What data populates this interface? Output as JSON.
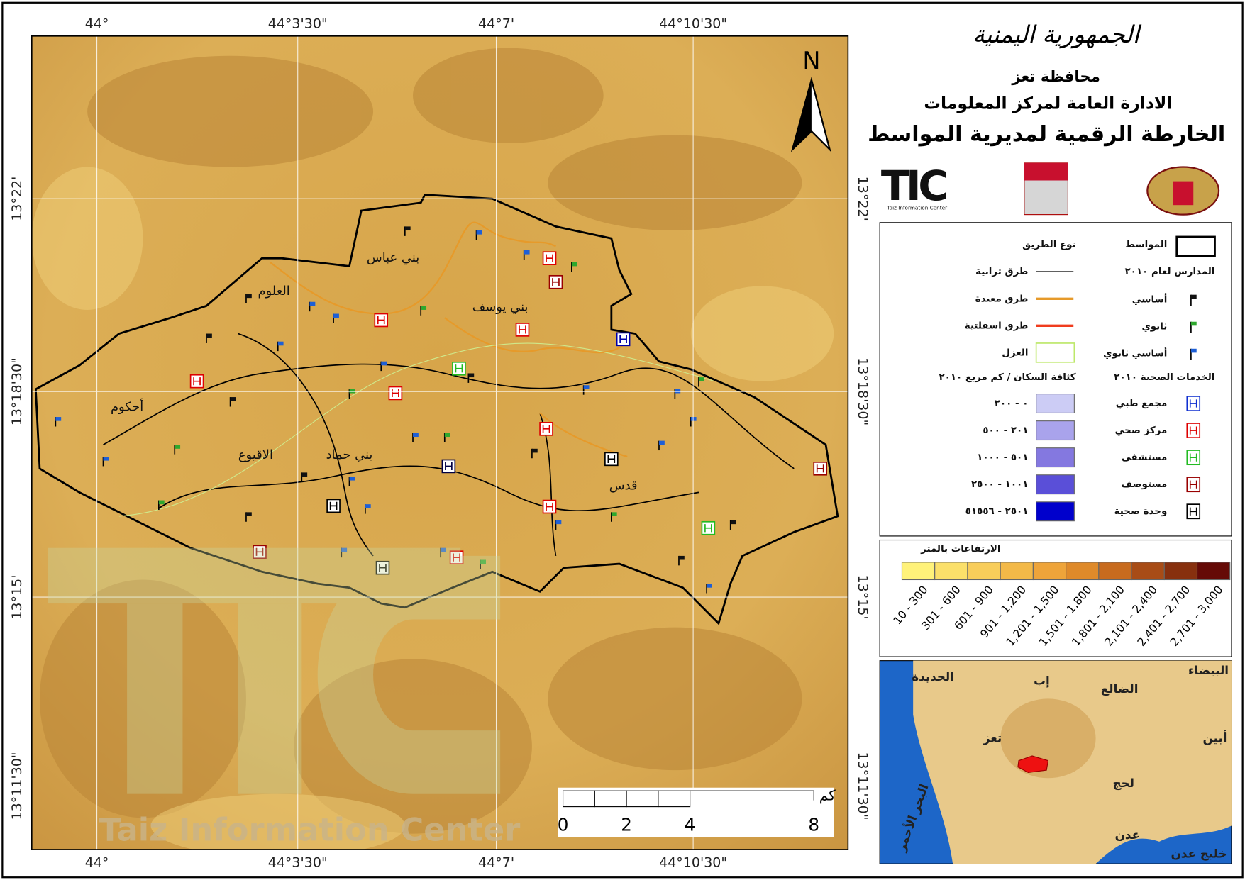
{
  "header": {
    "logo_text": "الجمهورية اليمنية",
    "governorate": "محافظة تعز",
    "department": "الادارة العامة لمركز المعلومات",
    "title": "الخارطة الرقمية لمديرية المواسط"
  },
  "logos": {
    "tic": "TIC",
    "tic_sub": "Taiz Information Center"
  },
  "north": "N",
  "coordinates": {
    "lon": [
      "44°",
      "44°3'30\"",
      "44°7'",
      "44°10'30\""
    ],
    "lat": [
      "13°22'",
      "13°18'30\"",
      "13°15'",
      "13°11'30\""
    ]
  },
  "map_labels": [
    "بني عباس",
    "العلوم",
    "بني يوسف",
    "أحكوم",
    "الاقيوع",
    "بني حماد",
    "قدس"
  ],
  "legend": {
    "district": "المواسط",
    "roads_title": "نوع الطريق",
    "roads": [
      "طرق ترابية",
      "طرق معبدة",
      "طرق اسفلتية"
    ],
    "isolation": "العزل",
    "schools_title": "المدارس لعام ٢٠١٠",
    "schools": [
      "أساسي",
      "ثانوي",
      "أساسي ثانوي"
    ],
    "health_title": "الخدمات الصحية ٢٠١٠",
    "health": [
      "مجمع طبي",
      "مركز صحي",
      "مستشفى",
      "مستوصف",
      "وحدة صحية"
    ],
    "density_title": "كثافة السكان / كم مربع ٢٠١٠",
    "density": [
      "٠ - ٢٠٠",
      "٢٠١ - ٥٠٠",
      "٥٠١ - ١٠٠٠",
      "١٠٠١ - ٢٥٠٠",
      "٢٥٠١ - ٥١٥٥٦"
    ]
  },
  "elevation": {
    "title": "الارتفاعات بالمتر",
    "classes": [
      "10 - 300",
      "301 - 600",
      "601 - 900",
      "901 - 1,200",
      "1,201 - 1,500",
      "1,501 - 1,800",
      "1,801 - 2,100",
      "2,101 - 2,400",
      "2,401 - 2,700",
      "2,701 - 3,000"
    ]
  },
  "scale_bar": {
    "unit": "كم",
    "labels": [
      0,
      2,
      4,
      8
    ]
  },
  "inset": {
    "labels": [
      "الحديدة",
      "إب",
      "البيضاء",
      "الضالع",
      "تعز",
      "أبين",
      "لحج",
      "البحر الأحمر",
      "عدن",
      "خليج عدن"
    ]
  },
  "watermark": "Taiz Information Center"
}
